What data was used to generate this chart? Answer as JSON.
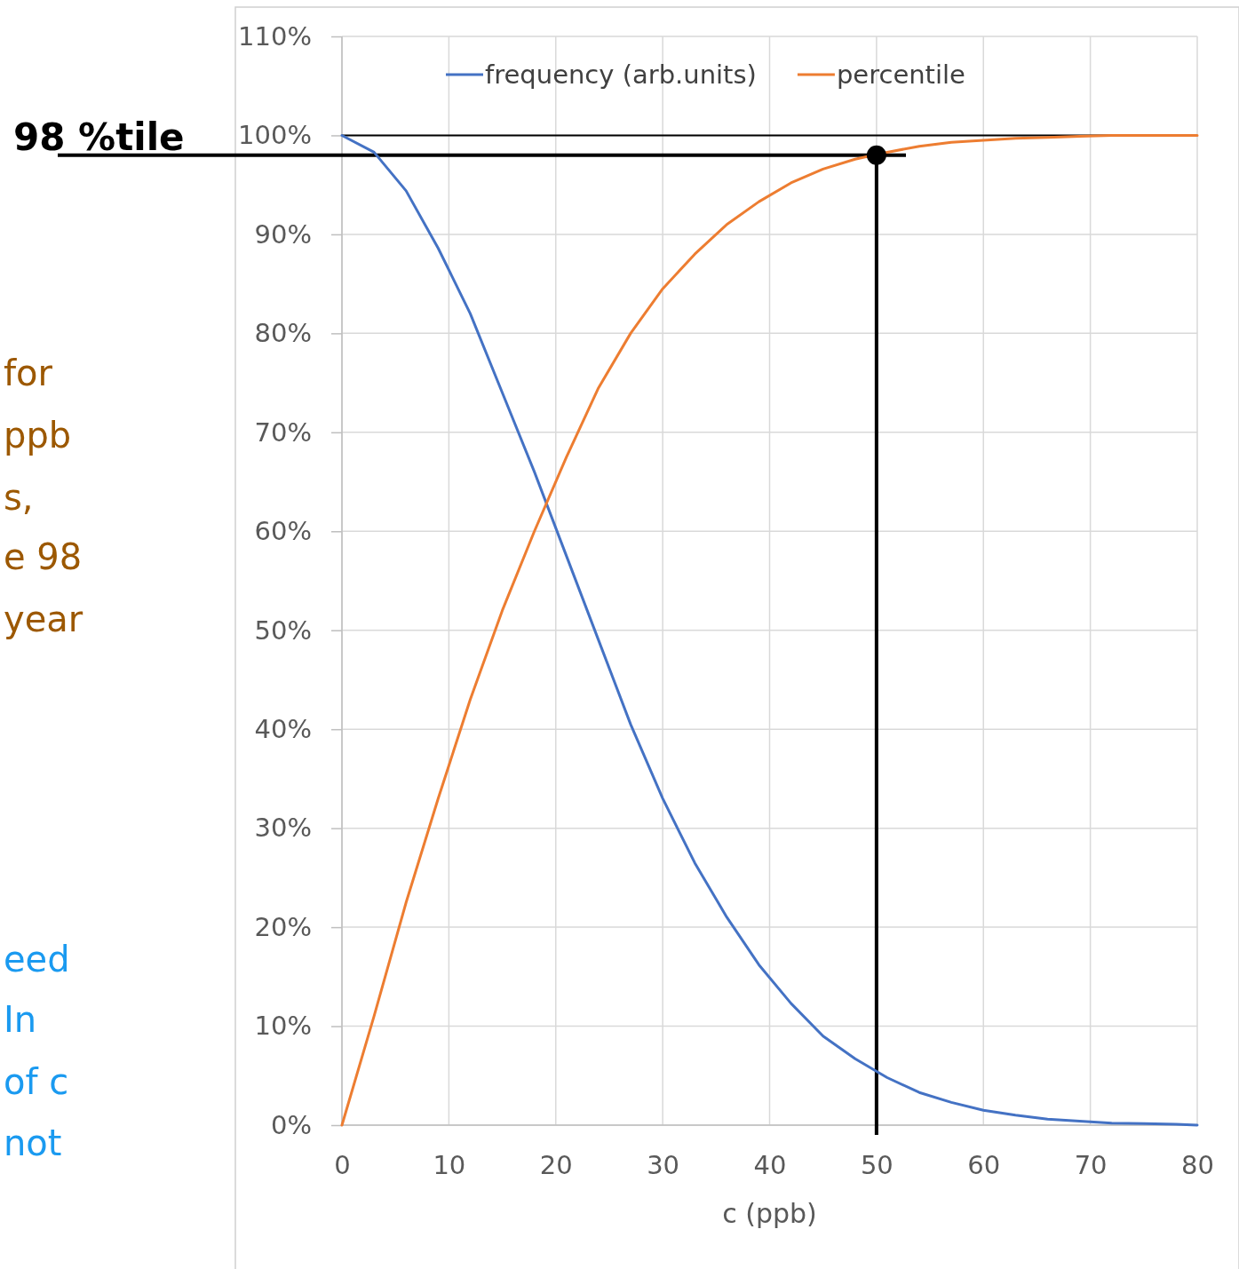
{
  "chart_data": {
    "type": "line",
    "xlabel": "c (ppb)",
    "xlim": [
      0,
      80
    ],
    "xticks": [
      0,
      10,
      20,
      30,
      40,
      50,
      60,
      70,
      80
    ],
    "ylim": [
      0,
      110
    ],
    "yticks": [
      {
        "value": 0,
        "label": "0%"
      },
      {
        "value": 10,
        "label": "10%"
      },
      {
        "value": 20,
        "label": "20%"
      },
      {
        "value": 30,
        "label": "30%"
      },
      {
        "value": 40,
        "label": "40%"
      },
      {
        "value": 50,
        "label": "50%"
      },
      {
        "value": 60,
        "label": "60%"
      },
      {
        "value": 70,
        "label": "70%"
      },
      {
        "value": 80,
        "label": "80%"
      },
      {
        "value": 90,
        "label": "90%"
      },
      {
        "value": 100,
        "label": "100%"
      },
      {
        "value": 110,
        "label": "110%"
      }
    ],
    "grid": true,
    "legend": "top",
    "line_style": "solid",
    "x": [
      0,
      3,
      6,
      9,
      12,
      15,
      18,
      21,
      24,
      27,
      30,
      33,
      36,
      39,
      42,
      45,
      48,
      51,
      54,
      57,
      60,
      63,
      66,
      69,
      72,
      75,
      78,
      80
    ],
    "series": [
      {
        "name": "frequency (arb.units)",
        "color": "#4472c4",
        "values": [
          100,
          98.3,
          94.4,
          88.6,
          82,
          74,
          66,
          57.5,
          49,
          40.5,
          33,
          26.5,
          21,
          16.2,
          12.3,
          9,
          6.7,
          4.8,
          3.3,
          2.3,
          1.5,
          1,
          0.6,
          0.4,
          0.2,
          0.15,
          0.1,
          0
        ]
      },
      {
        "name": "percentile",
        "color": "#ed7d31",
        "values": [
          0,
          11,
          22.5,
          33,
          43,
          52,
          60,
          67.5,
          74.5,
          80,
          84.5,
          88,
          91,
          93.3,
          95.2,
          96.6,
          97.6,
          98.3,
          98.9,
          99.3,
          99.5,
          99.7,
          99.8,
          99.9,
          100,
          100,
          100,
          100
        ]
      },
      {
        "type": "scatter",
        "marker": "circle",
        "color": "#000000",
        "x": [
          50
        ],
        "values": [
          98
        ]
      }
    ],
    "ref_lines": [
      {
        "axis": "y",
        "value": 100,
        "color": "#000000"
      },
      {
        "axis": "y",
        "value": 98,
        "label": "98 %tile",
        "color": "#000000"
      },
      {
        "axis": "x",
        "value": 50,
        "color": "#000000"
      }
    ],
    "annotations": [
      "for",
      "ppb",
      "s,",
      "e 98",
      "year",
      "eed",
      "In",
      "of c",
      "not"
    ]
  }
}
